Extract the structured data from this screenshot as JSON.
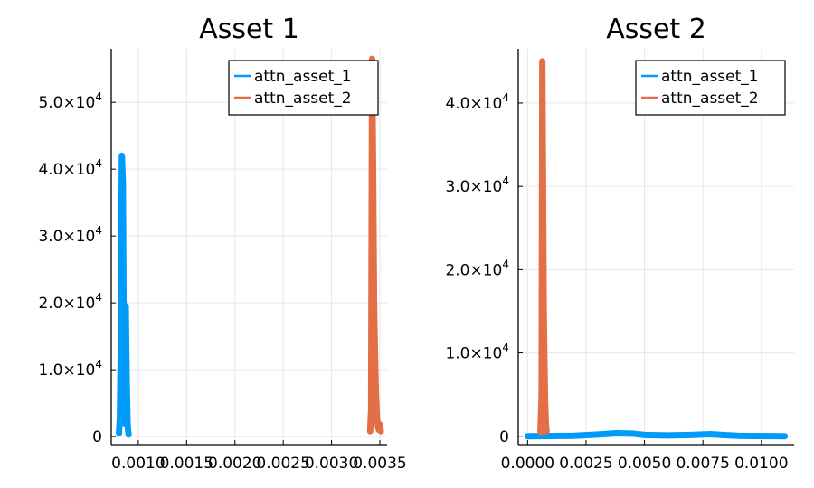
{
  "chart_data": [
    {
      "type": "line",
      "title": "Asset 1",
      "xlim": [
        0.00072,
        0.00036
      ],
      "xlim_note": "",
      "x_range": [
        0.00072,
        0.003575
      ],
      "ylim": [
        -1200,
        58000
      ],
      "x_ticks": [
        0.001,
        0.0015,
        0.002,
        0.0025,
        0.003,
        0.0035
      ],
      "x_tick_labels": [
        "0.0010",
        "0.0015",
        "0.0020",
        "0.0025",
        "0.0030",
        "0.0035"
      ],
      "y_ticks": [
        0,
        10000,
        20000,
        30000,
        40000,
        50000
      ],
      "y_tick_labels": [
        {
          "base": "0",
          "exp": ""
        },
        {
          "base": "1.0×10",
          "exp": "4"
        },
        {
          "base": "2.0×10",
          "exp": "4"
        },
        {
          "base": "3.0×10",
          "exp": "4"
        },
        {
          "base": "4.0×10",
          "exp": "4"
        },
        {
          "base": "5.0×10",
          "exp": "4"
        }
      ],
      "legend": "top-right",
      "grid": true,
      "series": [
        {
          "name": "attn_asset_1",
          "color": "#009af9",
          "x": [
            0.0008,
            0.00081,
            0.00082,
            0.00083,
            0.00084,
            0.00085,
            0.00086,
            0.00087,
            0.00088,
            0.00089,
            0.0009
          ],
          "y": [
            500,
            3000,
            15000,
            42000,
            38000,
            12000,
            2000,
            19500,
            8000,
            1500,
            300
          ]
        },
        {
          "name": "attn_asset_2",
          "color": "#e26f46",
          "x": [
            0.0034,
            0.00341,
            0.00342,
            0.00343,
            0.00344,
            0.00345,
            0.00346,
            0.00347,
            0.00348,
            0.00349,
            0.0035,
            0.00351
          ],
          "y": [
            800,
            4000,
            56500,
            40000,
            20000,
            12000,
            6000,
            3000,
            1500,
            1000,
            1800,
            800
          ]
        }
      ]
    },
    {
      "type": "line",
      "title": "Asset 2",
      "x_range": [
        -0.0004,
        0.0114
      ],
      "ylim": [
        -1000,
        46500
      ],
      "x_ticks": [
        0.0,
        0.0025,
        0.005,
        0.0075,
        0.01
      ],
      "x_tick_labels": [
        "0.0000",
        "0.0025",
        "0.0050",
        "0.0075",
        "0.0100"
      ],
      "y_ticks": [
        0,
        10000,
        20000,
        30000,
        40000
      ],
      "y_tick_labels": [
        {
          "base": "0",
          "exp": ""
        },
        {
          "base": "1.0×10",
          "exp": "4"
        },
        {
          "base": "2.0×10",
          "exp": "4"
        },
        {
          "base": "3.0×10",
          "exp": "4"
        },
        {
          "base": "4.0×10",
          "exp": "4"
        }
      ],
      "legend": "top-right",
      "grid": true,
      "series": [
        {
          "name": "attn_asset_1",
          "color": "#009af9",
          "x": [
            0.0,
            0.001,
            0.002,
            0.003,
            0.0038,
            0.0045,
            0.005,
            0.006,
            0.007,
            0.0078,
            0.0085,
            0.009,
            0.0095,
            0.0105,
            0.011
          ],
          "y": [
            0,
            30,
            60,
            200,
            350,
            320,
            150,
            100,
            150,
            250,
            120,
            60,
            30,
            15,
            10
          ]
        },
        {
          "name": "attn_asset_2",
          "color": "#e26f46",
          "x": [
            0.00055,
            0.0006,
            0.00063,
            0.00066,
            0.00069,
            0.00072,
            0.00075,
            0.00078,
            0.00081
          ],
          "y": [
            500,
            5000,
            45000,
            30000,
            15000,
            9000,
            4000,
            1500,
            600
          ]
        }
      ]
    }
  ]
}
